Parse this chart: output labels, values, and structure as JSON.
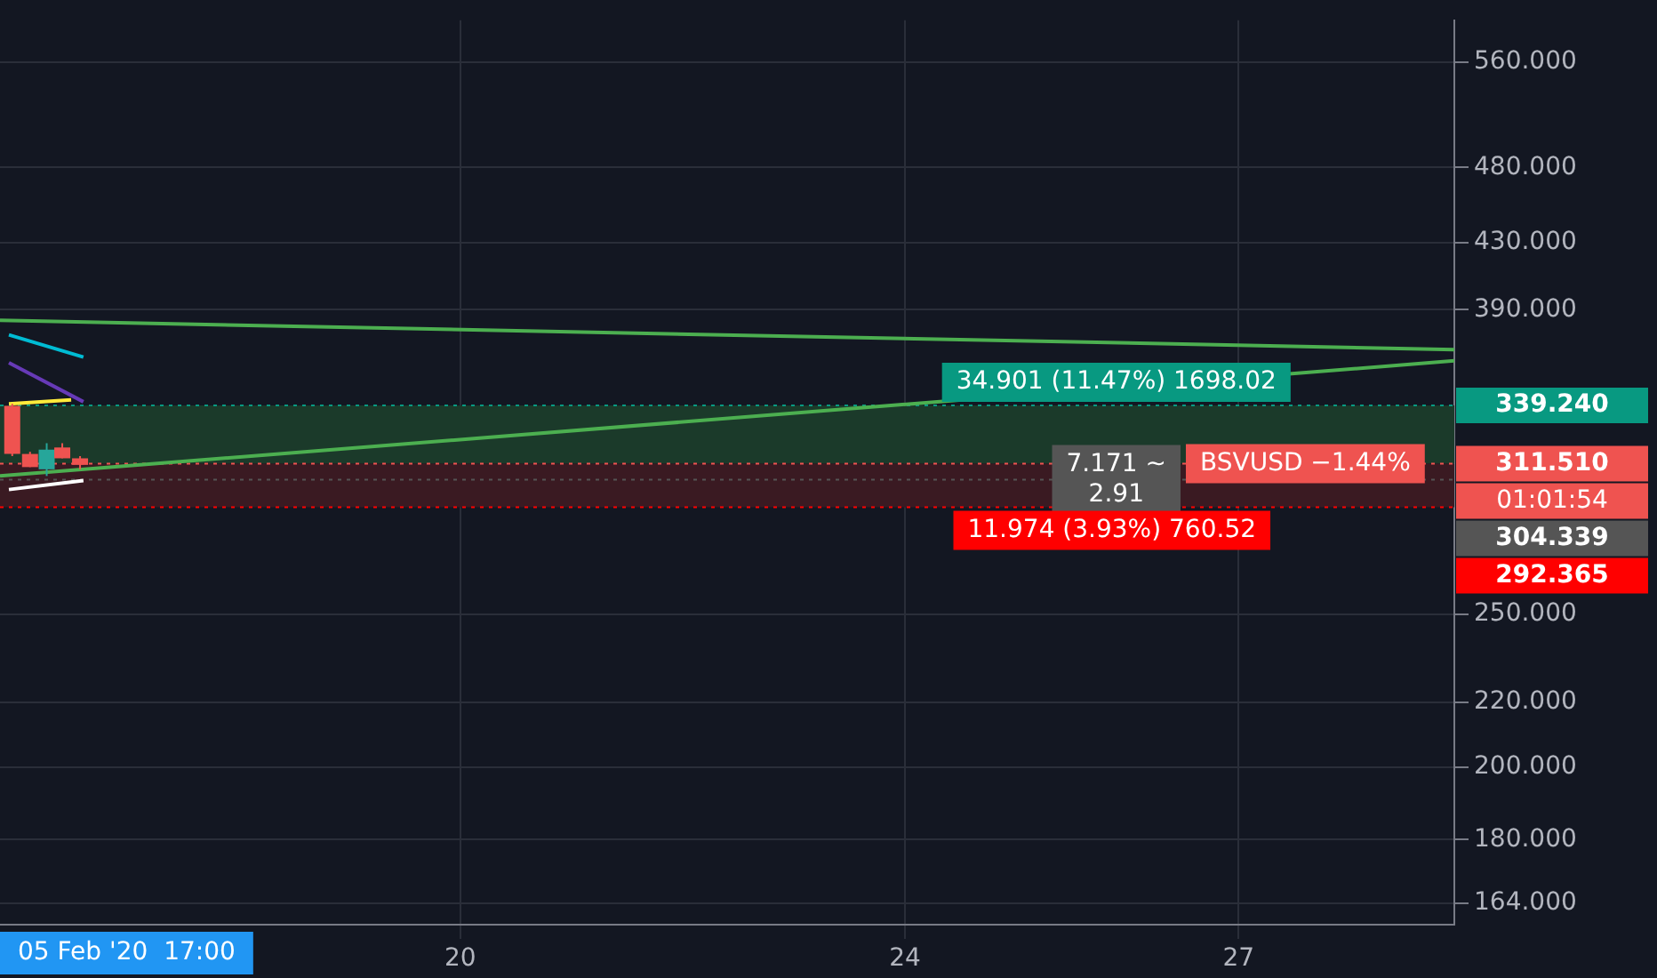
{
  "chart_data": {
    "type": "candlestick",
    "x": [
      15.97,
      16.13,
      16.28,
      16.42,
      16.58
    ],
    "ohlc": [
      [
        339,
        340,
        315,
        316
      ],
      [
        316,
        317,
        310,
        310
      ],
      [
        309,
        321,
        306,
        318
      ],
      [
        319,
        321,
        314,
        314
      ],
      [
        314,
        315,
        309,
        311
      ]
    ],
    "colors": [
      "#ef5350",
      "#ef5350",
      "#26a69a",
      "#ef5350",
      "#ef5350"
    ],
    "xlim": [
      15.86,
      28.94
    ],
    "xticks": [
      20,
      24,
      27
    ],
    "ylim": [
      159,
      595
    ],
    "yticks": [
      {
        "value": 164,
        "label": "164.000"
      },
      {
        "value": 180,
        "label": "180.000"
      },
      {
        "value": 200,
        "label": "200.000"
      },
      {
        "value": 220,
        "label": "220.000"
      },
      {
        "value": 250,
        "label": "250.000"
      },
      {
        "value": 390,
        "label": "390.000"
      },
      {
        "value": 430,
        "label": "430.000"
      },
      {
        "value": 480,
        "label": "480.000"
      },
      {
        "value": 560,
        "label": "560.000"
      }
    ],
    "log": "y",
    "grid": true,
    "legend": false,
    "series": [
      {
        "type": "line",
        "color": "#4caf50",
        "x": [
          15.86,
          28.94
        ],
        "values": [
          384,
          368
        ]
      },
      {
        "type": "line",
        "color": "#4caf50",
        "x": [
          15.86,
          28.94
        ],
        "values": [
          306,
          362
        ]
      },
      {
        "type": "line",
        "color": "#00bcd4",
        "x": [
          15.94,
          16.61
        ],
        "values": [
          376,
          364
        ]
      },
      {
        "type": "line",
        "color": "#673ab7",
        "x": [
          15.94,
          16.61
        ],
        "values": [
          361,
          341
        ]
      },
      {
        "type": "line",
        "color": "#ffeb3b",
        "x": [
          15.94,
          16.5
        ],
        "values": [
          340,
          342
        ]
      },
      {
        "type": "line",
        "color": "#ffffff",
        "x": [
          15.94,
          16.61
        ],
        "values": [
          300,
          304
        ]
      }
    ],
    "bands": [
      {
        "axis": "y",
        "from": 311.51,
        "to": 339.24,
        "color": "#1b3a2a"
      },
      {
        "axis": "y",
        "from": 292.365,
        "to": 311.51,
        "color": "#3a1a22"
      }
    ],
    "ref_lines": [
      {
        "axis": "y",
        "value": 339.24,
        "label": "339.240",
        "color": "#089981"
      },
      {
        "axis": "y",
        "value": 311.51,
        "label": "311.510",
        "color": "#ef5350",
        "line_style": "dotted"
      },
      {
        "axis": "y",
        "value": 304.339,
        "label": "304.339",
        "color": "#555555"
      },
      {
        "axis": "y",
        "value": 292.365,
        "label": "292.365",
        "color": "#ff0000"
      }
    ],
    "annotations": [
      {
        "text": "34.901 (11.47%) 1698.02",
        "x": 25.9,
        "y": 339.24
      },
      {
        "text": "7.171 ~ 2.91",
        "x": 25.9,
        "y": 304.339
      },
      {
        "text": "11.974 (3.93%) 760.52",
        "x": 25.86,
        "y": 292.365
      },
      {
        "text": "BSVUSD −1.44%",
        "x": 27.6,
        "y": 311.51
      },
      "01:01:54",
      "05 Feb '20  17:00"
    ]
  }
}
